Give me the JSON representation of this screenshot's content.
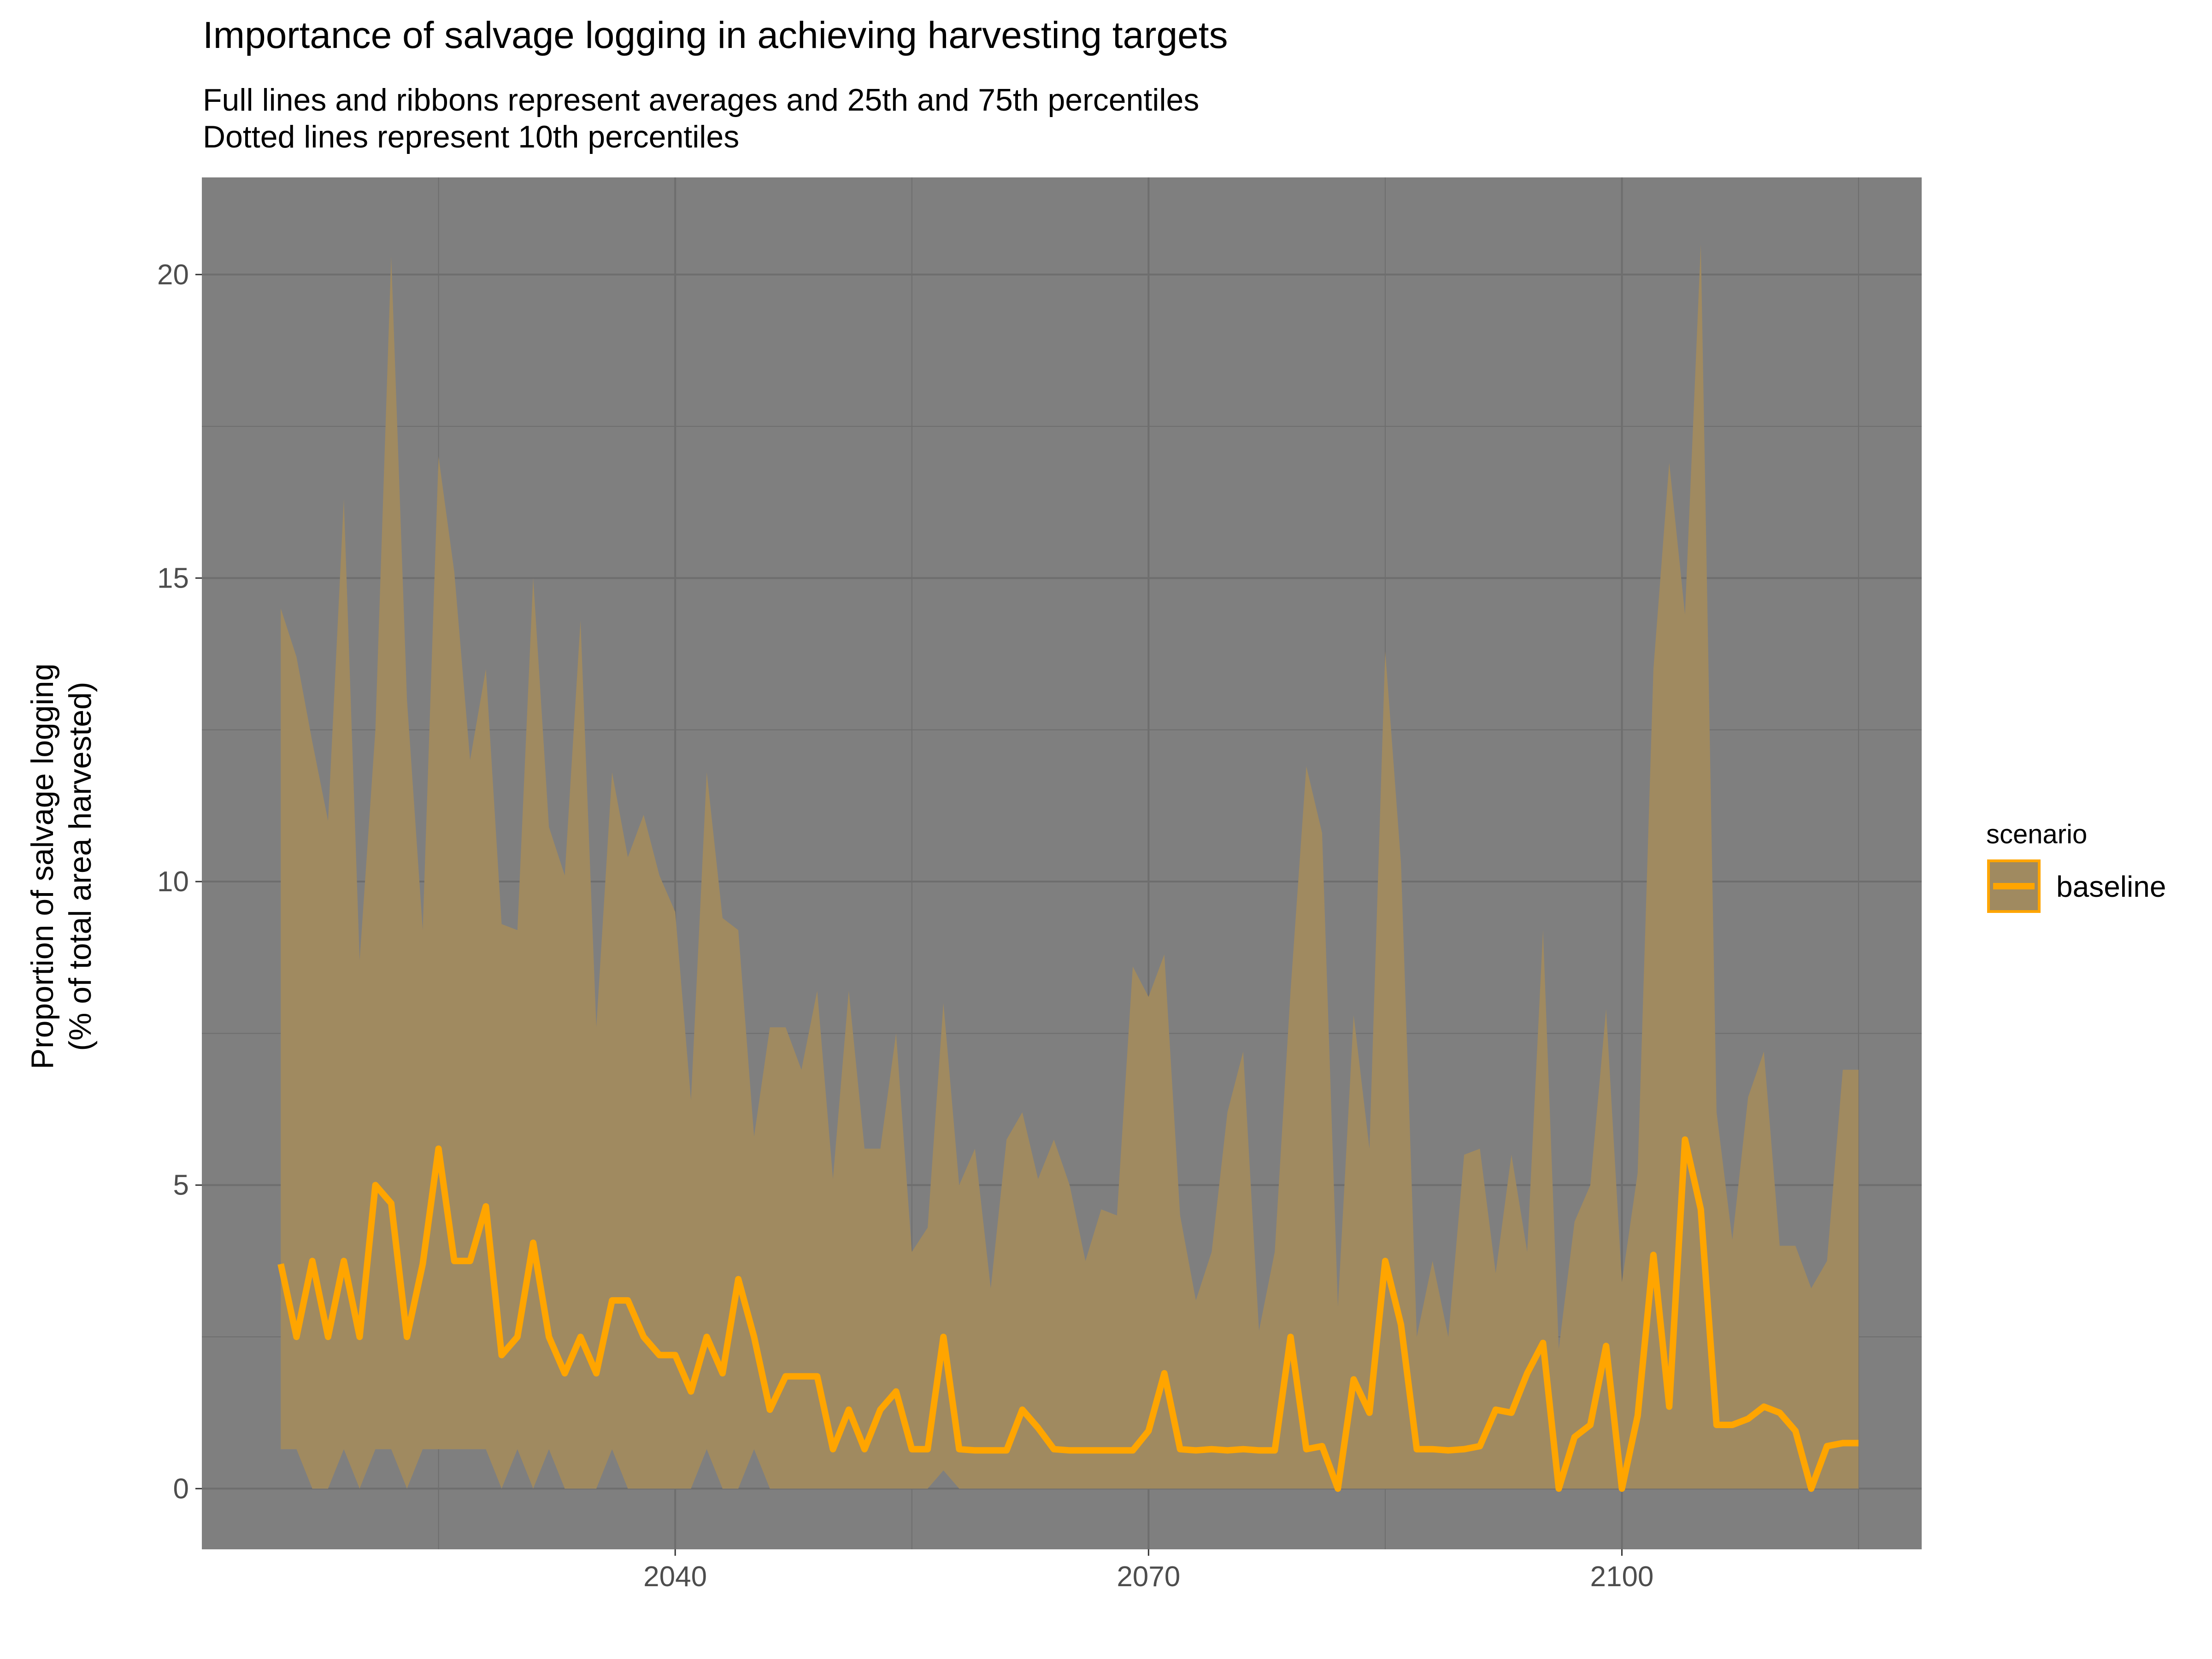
{
  "chart_data": {
    "type": "area",
    "title": "Importance of salvage logging in achieving harvesting targets",
    "subtitle_lines": [
      "Full lines and ribbons represent averages and 25th and 75th percentiles",
      "Dotted lines represent 10th percentiles"
    ],
    "xlabel": "",
    "ylabel_lines": [
      "Proportion of salvage logging",
      "(% of total area harvested)"
    ],
    "x_ticks": [
      2040,
      2070,
      2100
    ],
    "y_ticks": [
      0,
      5,
      10,
      15,
      20
    ],
    "xlim": [
      2010,
      2119
    ],
    "ylim": [
      -1,
      21.6
    ],
    "grid": true,
    "legend": {
      "title": "scenario",
      "position": "right",
      "entries": [
        "baseline"
      ]
    },
    "colors": {
      "panel": "#7f7f7f",
      "ribbon": "#a08a60",
      "line": "#ffa500",
      "grid": "#6e6e6e"
    },
    "series": [
      {
        "name": "baseline",
        "x": [
          2015,
          2016,
          2017,
          2018,
          2019,
          2020,
          2021,
          2022,
          2023,
          2024,
          2025,
          2026,
          2027,
          2028,
          2029,
          2030,
          2031,
          2032,
          2033,
          2034,
          2035,
          2036,
          2037,
          2038,
          2039,
          2040,
          2041,
          2042,
          2043,
          2044,
          2045,
          2046,
          2047,
          2048,
          2049,
          2050,
          2051,
          2052,
          2053,
          2054,
          2055,
          2056,
          2057,
          2058,
          2059,
          2060,
          2061,
          2062,
          2063,
          2064,
          2065,
          2066,
          2067,
          2068,
          2069,
          2070,
          2071,
          2072,
          2073,
          2074,
          2075,
          2076,
          2077,
          2078,
          2079,
          2080,
          2081,
          2082,
          2083,
          2084,
          2085,
          2086,
          2087,
          2088,
          2089,
          2090,
          2091,
          2092,
          2093,
          2094,
          2095,
          2096,
          2097,
          2098,
          2099,
          2100,
          2101,
          2102,
          2103,
          2104,
          2105,
          2106,
          2107,
          2108,
          2109,
          2110,
          2111,
          2112,
          2113,
          2114,
          2115
        ],
        "mean": [
          3.7,
          2.5,
          3.75,
          2.5,
          3.75,
          2.5,
          5.0,
          4.7,
          2.5,
          3.7,
          5.6,
          3.75,
          3.75,
          4.65,
          2.2,
          2.5,
          4.05,
          2.5,
          1.9,
          2.5,
          1.9,
          3.1,
          3.1,
          2.5,
          2.2,
          2.2,
          1.6,
          2.5,
          1.9,
          3.45,
          2.5,
          1.3,
          1.85,
          1.85,
          1.85,
          0.65,
          1.3,
          0.65,
          1.3,
          1.6,
          0.65,
          0.65,
          2.5,
          0.65,
          0.63,
          0.63,
          0.63,
          1.3,
          1.0,
          0.65,
          0.63,
          0.63,
          0.63,
          0.63,
          0.63,
          0.95,
          1.9,
          0.65,
          0.63,
          0.65,
          0.63,
          0.65,
          0.63,
          0.63,
          2.5,
          0.65,
          0.7,
          0.0,
          1.8,
          1.25,
          3.75,
          2.7,
          0.65,
          0.65,
          0.63,
          0.65,
          0.7,
          1.3,
          1.25,
          1.9,
          2.4,
          0.0,
          0.85,
          1.05,
          2.35,
          0.0,
          1.2,
          3.85,
          1.35,
          5.75,
          4.6,
          1.05,
          1.05,
          1.15,
          1.35,
          1.25,
          0.95,
          0.0,
          0.7,
          0.75,
          0.75
        ],
        "p75": [
          14.5,
          13.7,
          12.3,
          11.0,
          16.3,
          8.7,
          12.5,
          20.3,
          13.0,
          9.2,
          17.0,
          15.1,
          12.0,
          13.5,
          9.3,
          9.2,
          15.0,
          10.9,
          10.1,
          14.3,
          7.6,
          11.8,
          10.4,
          11.1,
          10.1,
          9.5,
          6.4,
          11.8,
          9.4,
          9.2,
          5.8,
          7.6,
          7.6,
          6.9,
          8.2,
          5.1,
          8.2,
          5.6,
          5.6,
          7.5,
          3.9,
          4.3,
          8.0,
          5.0,
          5.6,
          3.3,
          5.75,
          6.2,
          5.1,
          5.75,
          5.0,
          3.75,
          4.6,
          4.5,
          8.6,
          8.1,
          8.8,
          4.5,
          3.1,
          3.9,
          6.2,
          7.2,
          2.6,
          3.9,
          8.2,
          11.9,
          10.8,
          3.0,
          7.8,
          5.6,
          13.8,
          10.3,
          2.5,
          3.75,
          2.5,
          5.5,
          5.6,
          3.55,
          5.5,
          3.9,
          9.2,
          2.3,
          4.4,
          5.0,
          7.9,
          3.4,
          5.2,
          13.5,
          16.9,
          14.4,
          20.5,
          6.2,
          4.1,
          6.45,
          7.2,
          4.0,
          4.0,
          3.3,
          3.75,
          6.9,
          6.9
        ],
        "p25": [
          0.65,
          0.65,
          0.0,
          0.0,
          0.65,
          0.0,
          0.65,
          0.65,
          0.0,
          0.65,
          0.65,
          0.65,
          0.65,
          0.65,
          0.0,
          0.65,
          0.0,
          0.65,
          0.0,
          0.0,
          0.0,
          0.65,
          0.0,
          0.0,
          0.0,
          0.0,
          0.0,
          0.65,
          0.0,
          0.0,
          0.65,
          0.0,
          0.0,
          0.0,
          0.0,
          0.0,
          0.0,
          0.0,
          0.0,
          0.0,
          0.0,
          0.0,
          0.3,
          0.0,
          0.0,
          0.0,
          0.0,
          0.0,
          0.0,
          0.0,
          0.0,
          0.0,
          0.0,
          0.0,
          0.0,
          0.0,
          0.0,
          0.0,
          0.0,
          0.0,
          0.0,
          0.0,
          0.0,
          0.0,
          0.0,
          0.0,
          0.0,
          0.0,
          0.0,
          0.0,
          0.0,
          0.0,
          0.0,
          0.0,
          0.0,
          0.0,
          0.0,
          0.0,
          0.0,
          0.0,
          0.0,
          0.0,
          0.0,
          0.0,
          0.0,
          0.0,
          0.0,
          0.0,
          0.0,
          0.0,
          0.0,
          0.0,
          0.0,
          0.0,
          0.0,
          0.0,
          0.0,
          0.0,
          0.0,
          0.0,
          0.0
        ]
      }
    ]
  }
}
